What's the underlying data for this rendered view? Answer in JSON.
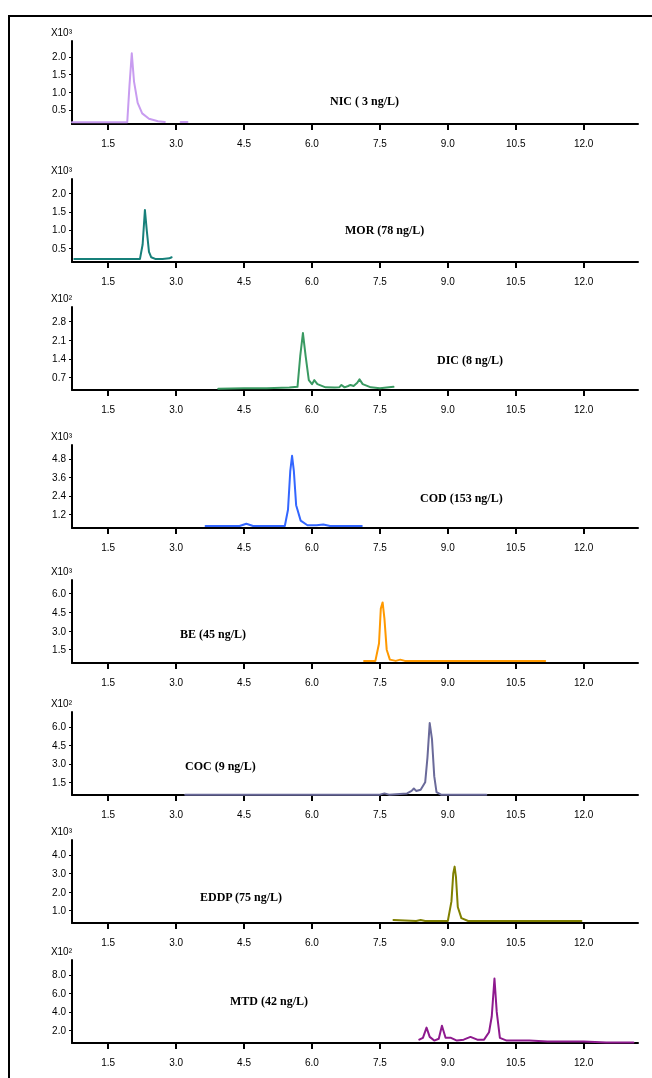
{
  "chart_data": [
    {
      "type": "line",
      "ylabel": "X10³",
      "annotations": [
        "NIC ( 3 ng/L)"
      ],
      "color": "#c89cf0",
      "marker": "none",
      "xlim": [
        0.7,
        13.2
      ],
      "xticks": [
        1.5,
        {
          "value": 3,
          "label": "3.0"
        },
        4.5,
        {
          "value": 6,
          "label": "6.0"
        },
        7.5,
        {
          "value": 9,
          "label": "9.0"
        },
        10.5,
        {
          "value": 12,
          "label": "12.0"
        }
      ],
      "ylim": [
        0.1,
        2.45
      ],
      "yticks": [
        0.5,
        {
          "value": 1,
          "label": "1.0"
        },
        1.5,
        {
          "value": 2,
          "label": "2.0"
        }
      ],
      "x": [
        0.7,
        1.92,
        1.97,
        2.02,
        2.07,
        2.15,
        2.25,
        2.4,
        2.6,
        2.75,
        2.9,
        3.1,
        3.25
      ],
      "values": [
        0.15,
        0.15,
        1.2,
        2.1,
        1.3,
        0.7,
        0.4,
        0.25,
        0.18,
        0.16,
        null,
        0.16,
        0.16
      ]
    },
    {
      "type": "line",
      "ylabel": "X10³",
      "annotations": [
        "MOR (78 ng/L)"
      ],
      "color": "#17807a",
      "marker": "none",
      "xlim": [
        0.7,
        13.2
      ],
      "xticks": [
        1.5,
        {
          "value": 3,
          "label": "3.0"
        },
        4.5,
        {
          "value": 6,
          "label": "6.0"
        },
        7.5,
        {
          "value": 9,
          "label": "9.0"
        },
        10.5,
        {
          "value": 12,
          "label": "12.0"
        }
      ],
      "ylim": [
        0.12,
        2.4
      ],
      "yticks": [
        0.5,
        {
          "value": 1,
          "label": "1.0"
        },
        1.5,
        {
          "value": 2,
          "label": "2.0"
        }
      ],
      "x": [
        0.75,
        2.2,
        2.26,
        2.31,
        2.35,
        2.4,
        2.45,
        2.55,
        2.7,
        2.85,
        2.9
      ],
      "values": [
        0.2,
        0.2,
        0.6,
        1.55,
        1.0,
        0.4,
        0.25,
        0.2,
        0.2,
        0.22,
        0.25
      ]
    },
    {
      "type": "line",
      "ylabel": "X10²",
      "annotations": [
        "DIC (8 ng/L)"
      ],
      "color": "#3a9a62",
      "marker": "none",
      "xlim": [
        0.7,
        13.2
      ],
      "xticks": [
        1.5,
        {
          "value": 3,
          "label": "3.0"
        },
        4.5,
        {
          "value": 6,
          "label": "6.0"
        },
        7.5,
        {
          "value": 9,
          "label": "9.0"
        },
        10.5,
        {
          "value": 12,
          "label": "12.0"
        }
      ],
      "ylim": [
        0.23,
        3.35
      ],
      "yticks": [
        0.7,
        1.4,
        2.1,
        2.8
      ],
      "x": [
        3.93,
        4.5,
        5.0,
        5.5,
        5.68,
        5.74,
        5.8,
        5.86,
        5.93,
        6.0,
        6.05,
        6.12,
        6.3,
        6.5,
        6.6,
        6.65,
        6.72,
        6.8,
        6.85,
        6.92,
        7.0,
        7.05,
        7.12,
        7.3,
        7.5,
        7.8
      ],
      "values": [
        0.28,
        0.3,
        0.3,
        0.32,
        0.35,
        1.5,
        2.37,
        1.5,
        0.6,
        0.45,
        0.6,
        0.45,
        0.33,
        0.32,
        0.33,
        0.42,
        0.33,
        0.38,
        0.42,
        0.38,
        0.5,
        0.63,
        0.45,
        0.33,
        0.3,
        0.35
      ]
    },
    {
      "type": "line",
      "ylabel": "X10³",
      "annotations": [
        "COD (153 ng/L)"
      ],
      "color": "#3366ff",
      "marker": "none",
      "xlim": [
        0.7,
        13.2
      ],
      "xticks": [
        1.5,
        {
          "value": 3,
          "label": "3.0"
        },
        4.5,
        {
          "value": 6,
          "label": "6.0"
        },
        7.5,
        {
          "value": 9,
          "label": "9.0"
        },
        10.5,
        {
          "value": 12,
          "label": "12.0"
        }
      ],
      "ylim": [
        0.32,
        5.7
      ],
      "yticks": [
        1.2,
        2.4,
        3.6,
        4.8
      ],
      "x": [
        3.65,
        4.4,
        4.55,
        4.7,
        5.0,
        5.4,
        5.47,
        5.52,
        5.56,
        5.6,
        5.65,
        5.75,
        5.9,
        6.1,
        6.25,
        6.4,
        6.8,
        7.1
      ],
      "values": [
        0.45,
        0.45,
        0.6,
        0.45,
        0.45,
        0.45,
        1.5,
        4.0,
        5.0,
        4.0,
        1.8,
        0.8,
        0.5,
        0.5,
        0.55,
        0.45,
        0.45,
        0.45
      ]
    },
    {
      "type": "line",
      "ylabel": "X10³",
      "annotations": [
        "BE (45 ng/L)"
      ],
      "color": "#ff9900",
      "marker": "none",
      "xlim": [
        0.7,
        13.2
      ],
      "xticks": [
        1.5,
        {
          "value": 3,
          "label": "3.0"
        },
        4.5,
        {
          "value": 6,
          "label": "6.0"
        },
        7.5,
        {
          "value": 9,
          "label": "9.0"
        },
        10.5,
        {
          "value": 12,
          "label": "12.0"
        }
      ],
      "ylim": [
        0.43,
        7.1
      ],
      "yticks": [
        1.5,
        {
          "value": 3,
          "label": "3.0"
        },
        4.5,
        {
          "value": 6,
          "label": "6.0"
        }
      ],
      "x": [
        7.15,
        7.4,
        7.48,
        7.52,
        7.56,
        7.6,
        7.65,
        7.72,
        7.85,
        7.95,
        8.05,
        9.0,
        10.0,
        11.15
      ],
      "values": [
        0.6,
        0.6,
        2.0,
        4.8,
        5.3,
        4.0,
        1.5,
        0.7,
        0.6,
        0.7,
        0.6,
        0.6,
        0.6,
        0.6
      ]
    },
    {
      "type": "line",
      "ylabel": "X10²",
      "annotations": [
        "COC (9 ng/L)"
      ],
      "color": "#6a6a9a",
      "marker": "none",
      "xlim": [
        0.7,
        13.2
      ],
      "xticks": [
        1.5,
        {
          "value": 3,
          "label": "3.0"
        },
        4.5,
        {
          "value": 6,
          "label": "6.0"
        },
        7.5,
        {
          "value": 9,
          "label": "9.0"
        },
        10.5,
        {
          "value": 12,
          "label": "12.0"
        }
      ],
      "ylim": [
        0.47,
        7.2
      ],
      "yticks": [
        1.5,
        {
          "value": 3,
          "label": "3.0"
        },
        4.5,
        {
          "value": 6,
          "label": "6.0"
        }
      ],
      "x": [
        3.2,
        5.0,
        7.0,
        7.5,
        7.6,
        7.7,
        8.1,
        8.2,
        8.25,
        8.3,
        8.4,
        8.5,
        8.55,
        8.6,
        8.65,
        8.7,
        8.75,
        8.85,
        9.0,
        9.85
      ],
      "values": [
        0.5,
        0.5,
        0.5,
        0.5,
        0.6,
        0.5,
        0.6,
        0.8,
        1.0,
        0.8,
        0.9,
        1.5,
        3.5,
        6.3,
        5.0,
        2.0,
        0.7,
        0.5,
        0.5,
        0.5
      ]
    },
    {
      "type": "line",
      "ylabel": "X10³",
      "annotations": [
        "EDDP (75 ng/L)"
      ],
      "color": "#808000",
      "marker": "none",
      "xlim": [
        0.7,
        13.2
      ],
      "xticks": [
        1.5,
        {
          "value": 3,
          "label": "3.0"
        },
        4.5,
        {
          "value": 6,
          "label": "6.0"
        },
        7.5,
        {
          "value": 9,
          "label": "9.0"
        },
        10.5,
        {
          "value": 12,
          "label": "12.0"
        }
      ],
      "ylim": [
        0.34,
        4.8
      ],
      "yticks": [
        {
          "value": 1,
          "label": "1.0"
        },
        {
          "value": 2,
          "label": "2.0"
        },
        {
          "value": 3,
          "label": "3.0"
        },
        {
          "value": 4,
          "label": "4.0"
        }
      ],
      "x": [
        7.8,
        8.3,
        8.4,
        8.5,
        9.0,
        9.08,
        9.12,
        9.15,
        9.18,
        9.22,
        9.3,
        9.45,
        10.0,
        11.0,
        11.95
      ],
      "values": [
        0.5,
        0.45,
        0.5,
        0.45,
        0.45,
        1.5,
        3.0,
        3.37,
        2.8,
        1.2,
        0.6,
        0.45,
        0.45,
        0.45,
        0.45
      ]
    },
    {
      "type": "line",
      "ylabel": "X10²",
      "annotations": [
        "MTD (42 ng/L)"
      ],
      "color": "#8e1a8e",
      "marker": "none",
      "xlim": [
        0.7,
        13.2
      ],
      "xticks": [
        1.5,
        {
          "value": 3,
          "label": "3.0"
        },
        4.5,
        {
          "value": 6,
          "label": "6.0"
        },
        7.5,
        {
          "value": 9,
          "label": "9.0"
        },
        10.5,
        {
          "value": 12,
          "label": "12.0"
        }
      ],
      "ylim": [
        0.64,
        9.6
      ],
      "yticks": [
        {
          "value": 2,
          "label": "2.0"
        },
        {
          "value": 4,
          "label": "4.0"
        },
        {
          "value": 6,
          "label": "6.0"
        },
        {
          "value": 8,
          "label": "8.0"
        }
      ],
      "x": [
        8.37,
        8.45,
        8.53,
        8.6,
        8.7,
        8.8,
        8.87,
        8.95,
        9.07,
        9.2,
        9.35,
        9.5,
        9.65,
        9.8,
        9.91,
        9.97,
        10.03,
        10.08,
        10.15,
        10.3,
        10.5,
        10.8,
        11.2,
        11.6,
        12.0,
        12.5,
        13.1
      ],
      "values": [
        1.0,
        1.2,
        2.3,
        1.3,
        0.9,
        1.1,
        2.5,
        1.2,
        1.2,
        0.9,
        1.0,
        1.3,
        1.0,
        1.0,
        1.8,
        3.5,
        7.6,
        4.0,
        1.2,
        0.9,
        0.9,
        0.9,
        0.8,
        0.8,
        0.8,
        0.7,
        0.7
      ]
    }
  ]
}
